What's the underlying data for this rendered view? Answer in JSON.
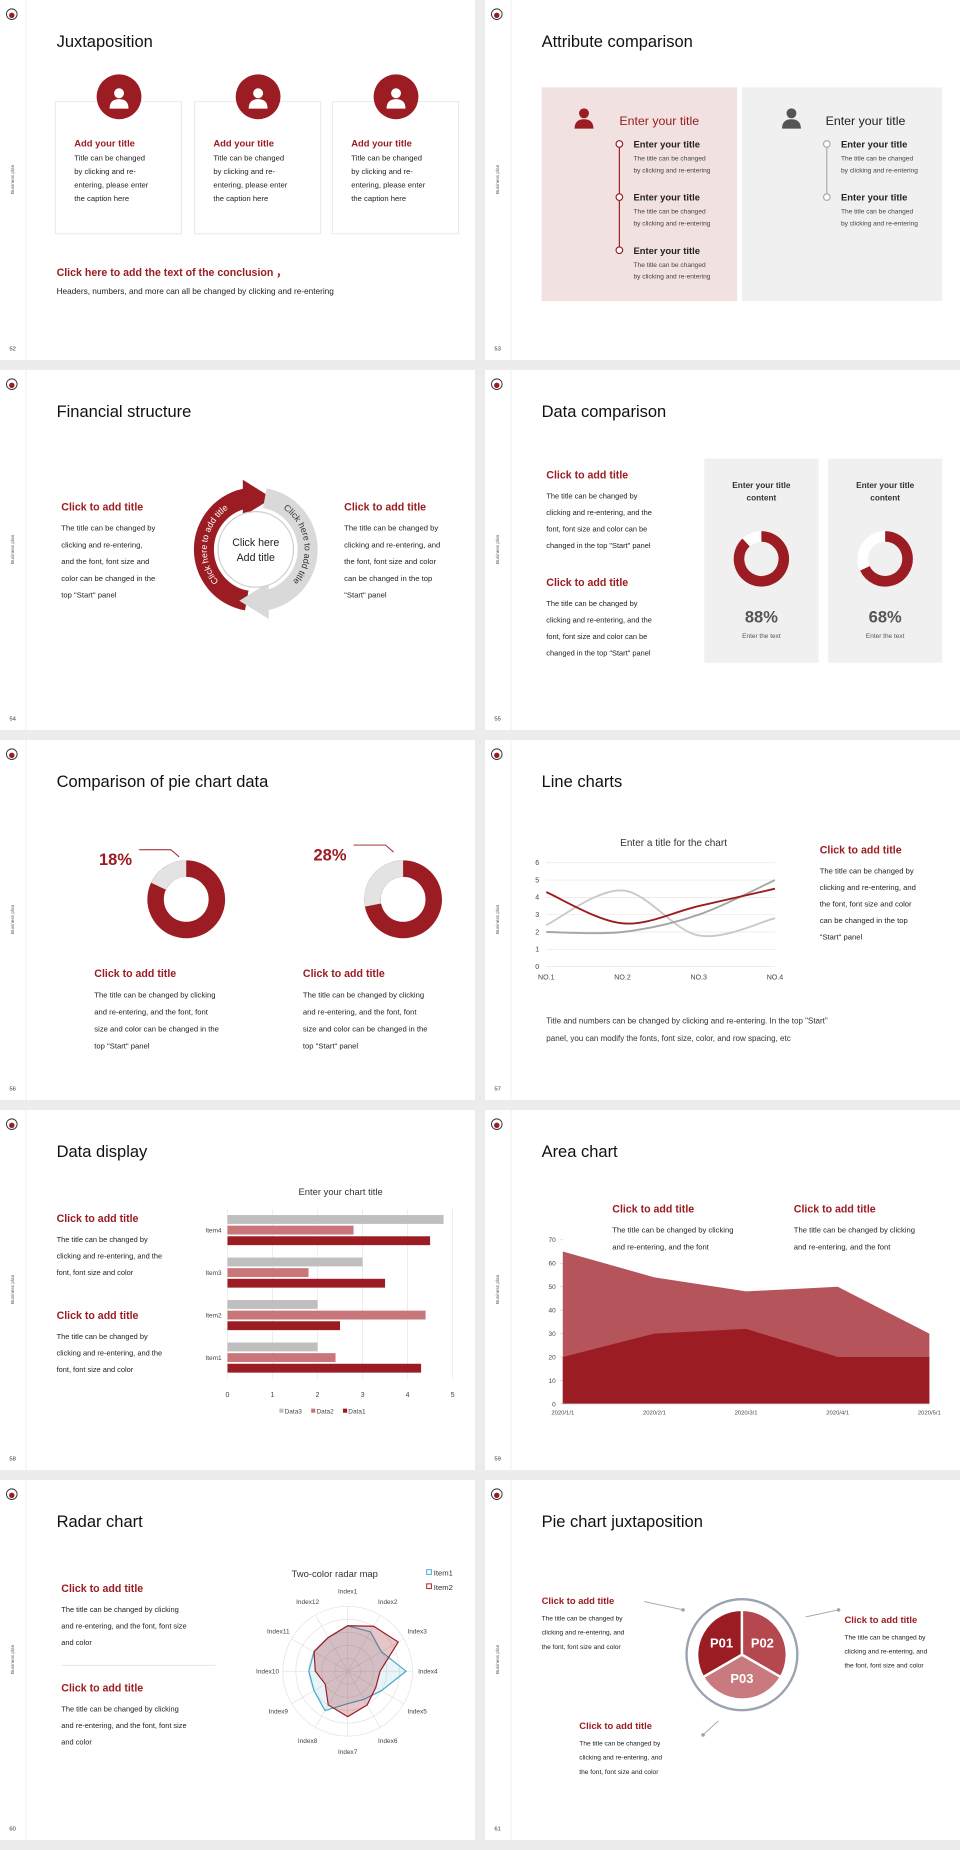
{
  "slides": [
    {
      "number": "52",
      "side_label": "Business plan",
      "title": "Juxtaposition",
      "cards": [
        {
          "title": "Add your title",
          "lines": [
            "Title can be changed",
            "by clicking and re-",
            "entering, please enter",
            "the caption here"
          ]
        },
        {
          "title": "Add your title",
          "lines": [
            "Title can be changed",
            "by clicking and re-",
            "entering, please enter",
            "the caption here"
          ]
        },
        {
          "title": "Add your title",
          "lines": [
            "Title can be changed",
            "by clicking and re-",
            "entering, please enter",
            "the caption here"
          ]
        }
      ],
      "conclusion_title": "Click here to add the text of the conclusion ，",
      "conclusion_text": "Headers, numbers, and more can all be changed by clicking and re-entering"
    },
    {
      "number": "53",
      "side_label": "Business plan",
      "title": "Attribute comparison",
      "panels": [
        {
          "heading": "Enter your title",
          "items": [
            {
              "title": "Enter your title",
              "lines": [
                "The title can be changed",
                "by clicking and re-entering"
              ]
            },
            {
              "title": "Enter your title",
              "lines": [
                "The title can be changed",
                "by clicking and re-entering"
              ]
            },
            {
              "title": "Enter your title",
              "lines": [
                "The title can be changed",
                "by clicking and re-entering"
              ]
            }
          ]
        },
        {
          "heading": "Enter your title",
          "items": [
            {
              "title": "Enter your title",
              "lines": [
                "The title can be changed",
                "by clicking and re-entering"
              ]
            },
            {
              "title": "Enter your title",
              "lines": [
                "The title can be changed",
                "by clicking and re-entering"
              ]
            }
          ]
        }
      ]
    },
    {
      "number": "54",
      "side_label": "Business plan",
      "title": "Financial structure",
      "blocks": [
        {
          "title": "Click to add title",
          "lines": [
            "The title can be changed by",
            "clicking and re-entering,",
            "and the font, font size and",
            "color can be changed in the",
            "top \"Start\" panel"
          ]
        },
        {
          "title": "Click to add title",
          "lines": [
            "The title can be changed by",
            "clicking and re-entering, and",
            "the font, font size and color",
            "can be changed in the top",
            "\"Start\" panel"
          ]
        }
      ],
      "center": [
        "Click here",
        "Add title"
      ],
      "arc_labels": [
        "Click here to add title",
        "Click here to add title"
      ]
    },
    {
      "number": "55",
      "side_label": "Business plan",
      "title": "Data comparison",
      "blocks": [
        {
          "title": "Click to add title",
          "lines": [
            "The title can be changed by",
            "clicking and re-entering, and the",
            "font, font size and color can be",
            "changed in the top \"Start\" panel"
          ]
        },
        {
          "title": "Click to add title",
          "lines": [
            "The title can be changed by",
            "clicking and re-entering, and the",
            "font, font size and color can be",
            "changed in the top \"Start\" panel"
          ]
        }
      ],
      "cards": [
        {
          "title_lines": [
            "Enter your title",
            "content"
          ],
          "value": 88,
          "value_label": "88%",
          "caption": "Enter the text"
        },
        {
          "title_lines": [
            "Enter your title",
            "content"
          ],
          "value": 68,
          "value_label": "68%",
          "caption": "Enter the text"
        }
      ]
    },
    {
      "number": "56",
      "side_label": "Business plan",
      "title": "Comparison of pie chart data",
      "charts": [
        {
          "type": "donut",
          "value": 18,
          "value_label": "18%"
        },
        {
          "type": "donut",
          "value": 28,
          "value_label": "28%"
        }
      ],
      "blocks": [
        {
          "title": "Click to add title",
          "lines": [
            "The title can be changed by clicking",
            "and re-entering, and the font, font",
            "size and color can be changed in the",
            "top \"Start\" panel"
          ]
        },
        {
          "title": "Click to add title",
          "lines": [
            "The title can be changed by clicking",
            "and re-entering, and the font, font",
            "size and color can be changed in the",
            "top \"Start\" panel"
          ]
        }
      ]
    },
    {
      "number": "57",
      "side_label": "Business plan",
      "title": "Line charts",
      "chart": {
        "type": "line",
        "title": "Enter a title for the chart",
        "categories": [
          "NO.1",
          "NO.2",
          "NO.3",
          "NO.4"
        ],
        "series": [
          {
            "color": "#c9c9c9",
            "values": [
              2.4,
              4.4,
              1.8,
              2.8
            ]
          },
          {
            "color": "#a6a6a6",
            "values": [
              2,
              2,
              3,
              5
            ]
          },
          {
            "color": "#9b1c22",
            "values": [
              4.3,
              2.5,
              3.5,
              4.5
            ]
          }
        ],
        "ylim": [
          0,
          6
        ],
        "yticks": [
          0,
          1,
          2,
          3,
          4,
          5,
          6
        ],
        "grid": true
      },
      "block": {
        "title": "Click to add title",
        "lines": [
          "The title can be changed by",
          "clicking and re-entering, and",
          "the font, font size and color",
          "can be changed in the top",
          "\"Start\" panel"
        ]
      },
      "note_lines": [
        "Title and numbers can be changed by clicking and re-entering. In the top \"Start\"",
        "panel, you can modify the fonts, font size, color, and row spacing, etc"
      ]
    },
    {
      "number": "58",
      "side_label": "Business plan",
      "title": "Data display",
      "blocks": [
        {
          "title": "Click to add title",
          "lines": [
            "The title can be changed by",
            "clicking and re-entering, and the",
            "font, font size and color"
          ]
        },
        {
          "title": "Click to add title",
          "lines": [
            "The title can be changed by",
            "clicking and re-entering, and the",
            "font, font size and color"
          ]
        }
      ],
      "chart": {
        "type": "bar",
        "orientation": "horizontal",
        "title": "Enter your chart title",
        "categories": [
          "Item1",
          "Item2",
          "Item3",
          "Item4"
        ],
        "series": [
          {
            "name": "Data1",
            "color": "#9b1c22",
            "values": [
              4.3,
              2.5,
              3.5,
              4.5
            ]
          },
          {
            "name": "Data2",
            "color": "#c8767a",
            "values": [
              2.4,
              4.4,
              1.8,
              2.8
            ]
          },
          {
            "name": "Data3",
            "color": "#bfbfbf",
            "values": [
              2,
              2,
              3,
              4.8
            ]
          }
        ],
        "xlim": [
          0,
          5
        ],
        "xticks": [
          0,
          1,
          2,
          3,
          4,
          5
        ],
        "grid": true
      }
    },
    {
      "number": "59",
      "side_label": "Business plan",
      "title": "Area chart",
      "blocks": [
        {
          "title": "Click to add title",
          "lines": [
            "The title can be changed by clicking",
            "and re-entering, and the font"
          ]
        },
        {
          "title": "Click to add title",
          "lines": [
            "The title can be changed by clicking",
            "and re-entering, and the font"
          ]
        }
      ],
      "chart": {
        "type": "area",
        "x": [
          "2020/1/1",
          "2020/2/1",
          "2020/3/1",
          "2020/4/1",
          "2020/5/1"
        ],
        "series": [
          {
            "color": "#b5545a",
            "values": [
              65,
              54,
              48,
              50,
              30
            ]
          },
          {
            "color": "#9b1c22",
            "values": [
              20,
              30,
              32,
              20,
              20
            ]
          }
        ],
        "ylim": [
          0,
          70
        ],
        "yticks": [
          0,
          10,
          20,
          30,
          40,
          50,
          60,
          70
        ]
      }
    },
    {
      "number": "60",
      "side_label": "Business plan",
      "title": "Radar chart",
      "blocks": [
        {
          "title": "Click to add title",
          "lines": [
            "The title can be changed by clicking",
            "and re-entering, and the font, font size",
            "and color"
          ]
        },
        {
          "title": "Click to add title",
          "lines": [
            "The title can be changed by clicking",
            "and re-entering, and the font, font size",
            "and color"
          ]
        }
      ],
      "chart": {
        "type": "radar",
        "title": "Two-color radar map",
        "categories": [
          "Index1",
          "Index2",
          "Index3",
          "Index4",
          "Index5",
          "Index6",
          "Index7",
          "Index8",
          "Index9",
          "Index10",
          "Index11",
          "Index12"
        ],
        "series": [
          {
            "name": "Item1",
            "color": "#3fa9c9",
            "values": [
              3.5,
              3.5,
              3,
              4.5,
              3,
              2.5,
              2.5,
              3.5,
              3,
              3,
              3,
              3
            ]
          },
          {
            "name": "Item2",
            "color": "#9b1c22",
            "values": [
              3.5,
              4,
              4.5,
              2.5,
              2.5,
              3,
              3.5,
              3,
              2,
              2.5,
              3,
              3
            ]
          }
        ],
        "rlim": [
          0,
          5
        ]
      }
    },
    {
      "number": "61",
      "side_label": "Business plan",
      "title": "Pie chart juxtaposition",
      "segments": [
        "P01",
        "P02",
        "P03"
      ],
      "blocks": [
        {
          "title": "Click to add title",
          "lines": [
            "The title can be changed by",
            "clicking and re-entering, and",
            "the font, font size and color"
          ]
        },
        {
          "title": "Click to add title",
          "lines": [
            "The title can be changed by",
            "clicking and re-entering, and",
            "the font, font size and color"
          ]
        },
        {
          "title": "Click to add title",
          "lines": [
            "The title can be changed by",
            "clicking and re-entering, and",
            "the font, font size and color"
          ]
        }
      ]
    }
  ]
}
